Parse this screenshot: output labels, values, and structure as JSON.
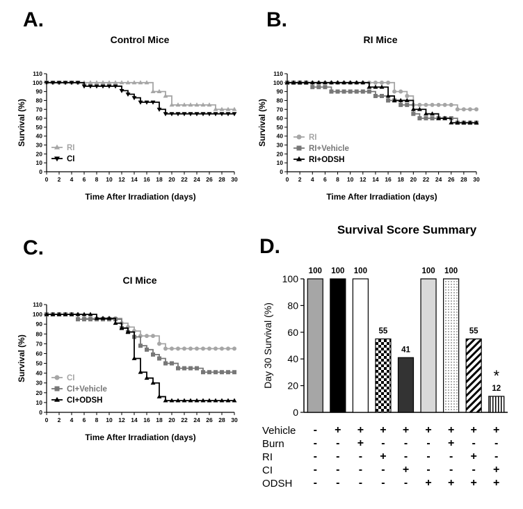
{
  "panel_letters": [
    "A.",
    "B.",
    "C.",
    "D."
  ],
  "chart_data": [
    {
      "type": "line",
      "panel": "A.",
      "title": "Control Mice",
      "xlabel": "Time After Irradiation (days)",
      "ylabel": "Survival (%)",
      "xlim": [
        0,
        30
      ],
      "ylim": [
        0,
        110
      ],
      "xticks": [
        0,
        2,
        4,
        6,
        8,
        10,
        12,
        14,
        16,
        18,
        20,
        22,
        24,
        26,
        28,
        30
      ],
      "yticks": [
        0,
        10,
        20,
        30,
        40,
        50,
        60,
        70,
        80,
        90,
        100,
        110
      ],
      "legend_position": "bottom-left",
      "series": [
        {
          "name": "RI",
          "color": "#a6a6a6",
          "marker": "triangle-up",
          "x": [
            0,
            1,
            2,
            3,
            4,
            5,
            6,
            7,
            8,
            9,
            10,
            11,
            12,
            13,
            14,
            15,
            16,
            17,
            18,
            19,
            20,
            21,
            22,
            23,
            24,
            25,
            26,
            27,
            28,
            29,
            30
          ],
          "y": [
            100,
            100,
            100,
            100,
            100,
            100,
            100,
            100,
            100,
            100,
            100,
            100,
            100,
            100,
            100,
            100,
            100,
            90,
            90,
            85,
            75,
            75,
            75,
            75,
            75,
            75,
            75,
            70,
            70,
            70,
            70
          ]
        },
        {
          "name": "CI",
          "color": "#000000",
          "marker": "triangle-down",
          "x": [
            0,
            1,
            2,
            3,
            4,
            5,
            6,
            7,
            8,
            9,
            10,
            11,
            12,
            13,
            14,
            15,
            16,
            17,
            18,
            19,
            20,
            21,
            22,
            23,
            24,
            25,
            26,
            27,
            28,
            29,
            30
          ],
          "y": [
            100,
            100,
            100,
            100,
            100,
            100,
            96,
            96,
            96,
            96,
            96,
            96,
            91,
            87,
            83,
            78,
            78,
            78,
            70,
            65,
            65,
            65,
            65,
            65,
            65,
            65,
            65,
            65,
            65,
            65,
            65
          ]
        }
      ]
    },
    {
      "type": "line",
      "panel": "B.",
      "title": "RI Mice",
      "xlabel": "Time After Irradiation (days)",
      "ylabel": "Survival (%)",
      "xlim": [
        0,
        30
      ],
      "ylim": [
        0,
        110
      ],
      "xticks": [
        0,
        2,
        4,
        6,
        8,
        10,
        12,
        14,
        16,
        18,
        20,
        22,
        24,
        26,
        28,
        30
      ],
      "yticks": [
        0,
        10,
        20,
        30,
        40,
        50,
        60,
        70,
        80,
        90,
        100,
        110
      ],
      "legend_position": "bottom-left",
      "series": [
        {
          "name": "RI",
          "color": "#a6a6a6",
          "marker": "circle",
          "x": [
            0,
            1,
            2,
            3,
            4,
            5,
            6,
            7,
            8,
            9,
            10,
            11,
            12,
            13,
            14,
            15,
            16,
            17,
            18,
            19,
            20,
            21,
            22,
            23,
            24,
            25,
            26,
            27,
            28,
            29,
            30
          ],
          "y": [
            100,
            100,
            100,
            100,
            100,
            100,
            100,
            100,
            100,
            100,
            100,
            100,
            100,
            100,
            100,
            100,
            100,
            90,
            90,
            85,
            75,
            75,
            75,
            75,
            75,
            75,
            75,
            70,
            70,
            70,
            70
          ]
        },
        {
          "name": "RI+Vehicle",
          "color": "#777777",
          "marker": "square",
          "x": [
            0,
            1,
            2,
            3,
            4,
            5,
            6,
            7,
            8,
            9,
            10,
            11,
            12,
            13,
            14,
            15,
            16,
            17,
            18,
            19,
            20,
            21,
            22,
            23,
            24,
            25,
            26,
            27,
            28,
            29,
            30
          ],
          "y": [
            100,
            100,
            100,
            100,
            95,
            95,
            95,
            90,
            90,
            90,
            90,
            90,
            90,
            90,
            85,
            85,
            80,
            80,
            75,
            75,
            65,
            60,
            60,
            60,
            60,
            60,
            60,
            55,
            55,
            55,
            55
          ]
        },
        {
          "name": "RI+ODSH",
          "color": "#000000",
          "marker": "triangle-up",
          "x": [
            0,
            1,
            2,
            3,
            4,
            5,
            6,
            7,
            8,
            9,
            10,
            11,
            12,
            13,
            14,
            15,
            16,
            17,
            18,
            19,
            20,
            21,
            22,
            23,
            24,
            25,
            26,
            27,
            28,
            29,
            30
          ],
          "y": [
            100,
            100,
            100,
            100,
            100,
            100,
            100,
            100,
            100,
            100,
            100,
            100,
            100,
            95,
            95,
            95,
            85,
            80,
            80,
            80,
            70,
            70,
            65,
            65,
            60,
            60,
            55,
            55,
            55,
            55,
            55
          ]
        }
      ]
    },
    {
      "type": "line",
      "panel": "C.",
      "title": "CI Mice",
      "xlabel": "Time After Irradiation (days)",
      "ylabel": "Survival (%)",
      "xlim": [
        0,
        30
      ],
      "ylim": [
        0,
        110
      ],
      "xticks": [
        0,
        2,
        4,
        6,
        8,
        10,
        12,
        14,
        16,
        18,
        20,
        22,
        24,
        26,
        28,
        30
      ],
      "yticks": [
        0,
        10,
        20,
        30,
        40,
        50,
        60,
        70,
        80,
        90,
        100,
        110
      ],
      "legend_position": "bottom-left",
      "series": [
        {
          "name": "CI",
          "color": "#a6a6a6",
          "marker": "circle",
          "x": [
            0,
            1,
            2,
            3,
            4,
            5,
            6,
            7,
            8,
            9,
            10,
            11,
            12,
            13,
            14,
            15,
            16,
            17,
            18,
            19,
            20,
            21,
            22,
            23,
            24,
            25,
            26,
            27,
            28,
            29,
            30
          ],
          "y": [
            100,
            100,
            100,
            100,
            100,
            100,
            96,
            96,
            96,
            96,
            96,
            96,
            91,
            87,
            83,
            78,
            78,
            78,
            70,
            65,
            65,
            65,
            65,
            65,
            65,
            65,
            65,
            65,
            65,
            65,
            65
          ]
        },
        {
          "name": "CI+Vehicle",
          "color": "#777777",
          "marker": "square",
          "x": [
            0,
            1,
            2,
            3,
            4,
            5,
            6,
            7,
            8,
            9,
            10,
            11,
            12,
            13,
            14,
            15,
            16,
            17,
            18,
            19,
            20,
            21,
            22,
            23,
            24,
            25,
            26,
            27,
            28,
            29,
            30
          ],
          "y": [
            100,
            100,
            100,
            100,
            100,
            95,
            95,
            95,
            95,
            95,
            95,
            95,
            86,
            82,
            77,
            68,
            64,
            59,
            55,
            50,
            50,
            45,
            45,
            45,
            45,
            41,
            41,
            41,
            41,
            41,
            41
          ]
        },
        {
          "name": "CI+ODSH",
          "color": "#000000",
          "marker": "triangle-up",
          "x": [
            0,
            1,
            2,
            3,
            4,
            5,
            6,
            7,
            8,
            9,
            10,
            11,
            12,
            13,
            14,
            15,
            16,
            17,
            18,
            19,
            20,
            21,
            22,
            23,
            24,
            25,
            26,
            27,
            28,
            29,
            30
          ],
          "y": [
            100,
            100,
            100,
            100,
            100,
            100,
            100,
            100,
            96,
            96,
            96,
            91,
            86,
            82,
            55,
            41,
            35,
            30,
            16,
            12,
            12,
            12,
            12,
            12,
            12,
            12,
            12,
            12,
            12,
            12,
            12
          ]
        }
      ]
    },
    {
      "type": "bar",
      "panel": "D.",
      "title": "Survival Score Summary",
      "ylabel": "Day 30 Survival (%)",
      "ylim": [
        0,
        100
      ],
      "yticks": [
        0,
        20,
        40,
        60,
        80,
        100
      ],
      "values": [
        100,
        100,
        100,
        55,
        41,
        100,
        100,
        55,
        12
      ],
      "value_labels": [
        "100",
        "100",
        "100",
        "55",
        "41",
        "100",
        "100",
        "55",
        "12"
      ],
      "fills": [
        "grey",
        "black",
        "white",
        "checker",
        "darkgrey",
        "lightgrey",
        "dots",
        "diagonal",
        "vertical"
      ],
      "annotations": [
        {
          "bar": 8,
          "text": "*"
        }
      ],
      "treatment_matrix": {
        "rows": [
          "Vehicle",
          "Burn",
          "RI",
          "CI",
          "ODSH"
        ],
        "marks": [
          [
            "-",
            "+",
            "+",
            "+",
            "+",
            "+",
            "+",
            "+",
            "+"
          ],
          [
            "-",
            "-",
            "+",
            "-",
            "-",
            "-",
            "+",
            "-",
            "-"
          ],
          [
            "-",
            "-",
            "-",
            "+",
            "-",
            "-",
            "-",
            "+",
            "-"
          ],
          [
            "-",
            "-",
            "-",
            "-",
            "+",
            "-",
            "-",
            "-",
            "+"
          ],
          [
            "-",
            "-",
            "-",
            "-",
            "-",
            "+",
            "+",
            "+",
            "+"
          ]
        ]
      }
    }
  ]
}
